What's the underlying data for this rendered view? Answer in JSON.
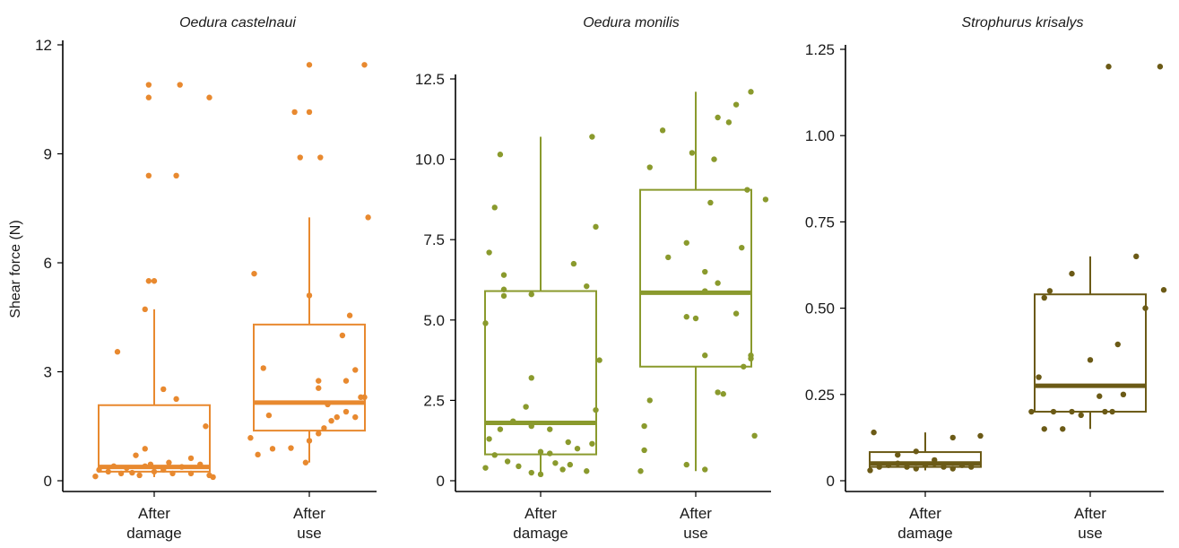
{
  "ylabel": "Shear force (N)",
  "chart_data": [
    {
      "type": "box",
      "title": "Oedura castelnaui",
      "ylabel": "Shear force (N)",
      "categories": [
        [
          "After",
          "damage"
        ],
        [
          "After",
          "use"
        ]
      ],
      "ylim": [
        -0.4,
        12
      ],
      "yticks": [
        0,
        3,
        6,
        9,
        12
      ],
      "ytick_labels": [
        "0",
        "3",
        "6",
        "9",
        "12"
      ],
      "color": "#E8892F",
      "boxes": [
        {
          "q1": 0.25,
          "median": 0.38,
          "q3": 2.08,
          "whisker_low": 0.1,
          "whisker_high": 4.72
        },
        {
          "q1": 1.38,
          "median": 2.15,
          "q3": 4.3,
          "whisker_low": 0.5,
          "whisker_high": 7.25
        }
      ],
      "points": [
        [
          [
            -0.32,
            0.12
          ],
          [
            -0.3,
            0.3
          ],
          [
            -0.25,
            0.25
          ],
          [
            -0.22,
            0.4
          ],
          [
            -0.18,
            0.2
          ],
          [
            -0.15,
            0.35
          ],
          [
            -0.12,
            0.22
          ],
          [
            -0.08,
            0.15
          ],
          [
            -0.05,
            0.4
          ],
          [
            0.0,
            0.25
          ],
          [
            0.05,
            0.3
          ],
          [
            0.1,
            0.2
          ],
          [
            0.15,
            0.38
          ],
          [
            0.2,
            0.2
          ],
          [
            0.25,
            0.45
          ],
          [
            0.3,
            0.15
          ],
          [
            0.32,
            0.1
          ],
          [
            -0.02,
            0.45
          ],
          [
            0.08,
            0.5
          ],
          [
            -0.1,
            0.7
          ],
          [
            -0.05,
            0.88
          ],
          [
            0.2,
            0.62
          ],
          [
            -0.2,
            3.55
          ],
          [
            -0.05,
            4.72
          ],
          [
            0.05,
            2.52
          ],
          [
            0.12,
            2.25
          ],
          [
            0.28,
            1.5
          ],
          [
            -0.03,
            5.5
          ],
          [
            0.0,
            5.5
          ],
          [
            -0.03,
            8.4
          ],
          [
            0.12,
            8.4
          ],
          [
            -0.03,
            10.55
          ],
          [
            -0.03,
            10.9
          ],
          [
            0.14,
            10.9
          ],
          [
            0.3,
            10.55
          ]
        ],
        [
          [
            -0.32,
            1.18
          ],
          [
            -0.28,
            0.72
          ],
          [
            -0.2,
            0.88
          ],
          [
            -0.22,
            1.8
          ],
          [
            -0.25,
            3.1
          ],
          [
            -0.3,
            5.7
          ],
          [
            -0.02,
            0.5
          ],
          [
            -0.1,
            0.9
          ],
          [
            0.0,
            1.1
          ],
          [
            0.05,
            1.3
          ],
          [
            0.08,
            1.45
          ],
          [
            0.12,
            1.65
          ],
          [
            0.15,
            1.75
          ],
          [
            0.2,
            1.9
          ],
          [
            0.25,
            1.75
          ],
          [
            0.28,
            2.3
          ],
          [
            0.1,
            2.1
          ],
          [
            0.05,
            2.75
          ],
          [
            0.05,
            2.55
          ],
          [
            0.2,
            2.75
          ],
          [
            0.25,
            3.05
          ],
          [
            0.18,
            4.0
          ],
          [
            0.22,
            4.55
          ],
          [
            0.0,
            5.1
          ],
          [
            -0.05,
            8.9
          ],
          [
            0.06,
            8.9
          ],
          [
            -0.08,
            10.15
          ],
          [
            0.0,
            10.15
          ],
          [
            0.0,
            11.45
          ],
          [
            0.3,
            11.45
          ],
          [
            0.32,
            7.25
          ],
          [
            0.3,
            2.3
          ]
        ]
      ]
    },
    {
      "type": "box",
      "title": "Oedura monilis",
      "categories": [
        [
          "After",
          "damage"
        ],
        [
          "After",
          "use"
        ]
      ],
      "ylim": [
        -0.4,
        12.5
      ],
      "yticks": [
        0.0,
        2.5,
        5.0,
        7.5,
        10.0,
        12.5
      ],
      "ytick_labels": [
        "0",
        "2.5",
        "5.0",
        "7.5",
        "10.0",
        "12.5"
      ],
      "color": "#8A9A2D",
      "boxes": [
        {
          "q1": 0.82,
          "median": 1.8,
          "q3": 5.9,
          "whisker_low": 0.2,
          "whisker_high": 10.7
        },
        {
          "q1": 3.55,
          "median": 5.85,
          "q3": 9.05,
          "whisker_low": 0.3,
          "whisker_high": 12.1
        }
      ],
      "points": [
        [
          [
            -0.3,
            0.4
          ],
          [
            -0.25,
            0.8
          ],
          [
            -0.18,
            0.6
          ],
          [
            -0.12,
            0.45
          ],
          [
            -0.05,
            0.25
          ],
          [
            0.0,
            0.9
          ],
          [
            0.05,
            0.85
          ],
          [
            0.08,
            0.55
          ],
          [
            0.12,
            0.35
          ],
          [
            0.16,
            0.5
          ],
          [
            0.2,
            1.0
          ],
          [
            0.25,
            0.3
          ],
          [
            0.0,
            0.2
          ],
          [
            -0.28,
            1.3
          ],
          [
            -0.22,
            1.6
          ],
          [
            -0.15,
            1.85
          ],
          [
            -0.05,
            1.7
          ],
          [
            0.05,
            1.6
          ],
          [
            0.15,
            1.2
          ],
          [
            0.28,
            1.15
          ],
          [
            0.3,
            2.2
          ],
          [
            -0.08,
            2.3
          ],
          [
            -0.05,
            3.2
          ],
          [
            0.32,
            3.75
          ],
          [
            -0.3,
            4.9
          ],
          [
            -0.2,
            5.75
          ],
          [
            -0.2,
            5.95
          ],
          [
            -0.05,
            5.8
          ],
          [
            0.18,
            6.75
          ],
          [
            0.25,
            6.05
          ],
          [
            -0.2,
            6.4
          ],
          [
            -0.28,
            7.1
          ],
          [
            -0.25,
            8.5
          ],
          [
            -0.22,
            10.15
          ],
          [
            0.3,
            7.9
          ],
          [
            0.28,
            10.7
          ]
        ],
        [
          [
            -0.3,
            0.3
          ],
          [
            -0.05,
            0.5
          ],
          [
            0.05,
            0.35
          ],
          [
            -0.28,
            1.7
          ],
          [
            -0.25,
            2.5
          ],
          [
            0.12,
            2.75
          ],
          [
            0.15,
            2.7
          ],
          [
            0.05,
            3.9
          ],
          [
            0.26,
            3.55
          ],
          [
            0.3,
            3.9
          ],
          [
            0.3,
            3.8
          ],
          [
            0.32,
            1.4
          ],
          [
            -0.05,
            5.1
          ],
          [
            0.0,
            5.05
          ],
          [
            0.22,
            5.2
          ],
          [
            0.12,
            6.15
          ],
          [
            0.05,
            6.5
          ],
          [
            -0.15,
            6.95
          ],
          [
            -0.05,
            7.4
          ],
          [
            0.25,
            7.25
          ],
          [
            -0.25,
            9.75
          ],
          [
            0.08,
            8.65
          ],
          [
            0.28,
            9.05
          ],
          [
            0.38,
            8.75
          ],
          [
            -0.18,
            10.9
          ],
          [
            -0.02,
            10.2
          ],
          [
            0.1,
            10.0
          ],
          [
            0.12,
            11.3
          ],
          [
            0.18,
            11.15
          ],
          [
            0.22,
            11.7
          ],
          [
            0.3,
            12.1
          ],
          [
            -0.28,
            0.95
          ],
          [
            0.05,
            5.9
          ]
        ]
      ]
    },
    {
      "type": "box",
      "title": "Strophurus krisalys",
      "categories": [
        [
          "After",
          "damage"
        ],
        [
          "After",
          "use"
        ]
      ],
      "ylim": [
        -0.025,
        1.25
      ],
      "yticks": [
        0.0,
        0.25,
        0.5,
        0.75,
        1.0,
        1.25
      ],
      "ytick_labels": [
        "0",
        "0.25",
        "0.50",
        "0.75",
        "1.00",
        "1.25"
      ],
      "color": "#6B5A16",
      "boxes": [
        {
          "q1": 0.04,
          "median": 0.05,
          "q3": 0.083,
          "whisker_low": 0.03,
          "whisker_high": 0.14
        },
        {
          "q1": 0.2,
          "median": 0.275,
          "q3": 0.54,
          "whisker_low": 0.15,
          "whisker_high": 0.65
        }
      ],
      "points": [
        [
          [
            -0.3,
            0.03
          ],
          [
            -0.25,
            0.04
          ],
          [
            -0.2,
            0.045
          ],
          [
            -0.15,
            0.05
          ],
          [
            -0.1,
            0.04
          ],
          [
            -0.05,
            0.035
          ],
          [
            0.0,
            0.045
          ],
          [
            0.05,
            0.05
          ],
          [
            0.1,
            0.04
          ],
          [
            0.15,
            0.035
          ],
          [
            0.2,
            0.045
          ],
          [
            0.25,
            0.04
          ],
          [
            -0.28,
            0.14
          ],
          [
            -0.15,
            0.075
          ],
          [
            -0.05,
            0.085
          ],
          [
            0.05,
            0.06
          ],
          [
            0.15,
            0.125
          ],
          [
            0.3,
            0.13
          ]
        ],
        [
          [
            -0.32,
            0.2
          ],
          [
            -0.25,
            0.15
          ],
          [
            -0.2,
            0.2
          ],
          [
            -0.15,
            0.15
          ],
          [
            -0.1,
            0.2
          ],
          [
            -0.05,
            0.19
          ],
          [
            0.05,
            0.245
          ],
          [
            0.08,
            0.2
          ],
          [
            0.12,
            0.2
          ],
          [
            0.18,
            0.25
          ],
          [
            -0.28,
            0.3
          ],
          [
            -0.25,
            0.53
          ],
          [
            -0.22,
            0.55
          ],
          [
            -0.1,
            0.6
          ],
          [
            0.0,
            0.35
          ],
          [
            0.15,
            0.395
          ],
          [
            0.25,
            0.65
          ],
          [
            0.3,
            0.5
          ],
          [
            0.4,
            0.553
          ],
          [
            0.1,
            1.2
          ],
          [
            0.38,
            1.2
          ]
        ]
      ]
    }
  ]
}
